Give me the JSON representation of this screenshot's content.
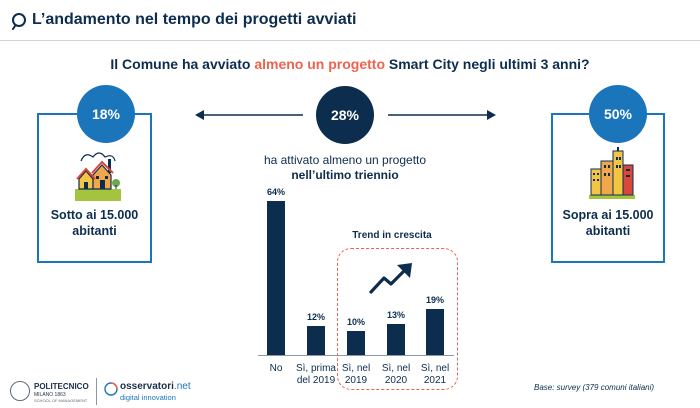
{
  "header": {
    "title": "L’andamento nel tempo dei progetti avviati",
    "icon": "magnifier-icon"
  },
  "question": {
    "before": "Il Comune ha avviato ",
    "highlight": "almeno un progetto",
    "after": " Smart City negli ultimi 3 anni?"
  },
  "left_panel": {
    "percent": "18%",
    "label_line1": "Sotto ai 15.000",
    "label_line2": "abitanti",
    "icon": "village-icon"
  },
  "right_panel": {
    "percent": "50%",
    "label_line1": "Sopra ai 15.000",
    "label_line2": "abitanti",
    "icon": "city-skyline-icon"
  },
  "center": {
    "percent": "28%",
    "text_line1": "ha attivato almeno un progetto",
    "text_line2": "nell’ultimo triennio"
  },
  "trend": {
    "title": "Trend in crescita",
    "icon": "trend-up-arrow-icon"
  },
  "chart_data": {
    "type": "bar",
    "categories": [
      "No",
      "Sì, prima del 2019",
      "Sì, nel 2019",
      "Sì, nel 2020",
      "Sì, nel 2021"
    ],
    "category_lines": [
      [
        "No"
      ],
      [
        "Sì, prima",
        "del 2019"
      ],
      [
        "Sì, nel",
        "2019"
      ],
      [
        "Sì, nel",
        "2020"
      ],
      [
        "Sì, nel",
        "2021"
      ]
    ],
    "values": [
      64,
      12,
      10,
      13,
      19
    ],
    "value_labels": [
      "64%",
      "12%",
      "10%",
      "13%",
      "19%"
    ],
    "ylim": [
      0,
      64
    ],
    "color": "#0d2d4f",
    "xlabel": "",
    "ylabel": ""
  },
  "footer": {
    "poli_name": "POLITECNICO",
    "poli_sub": "MILANO 1863",
    "poli_school": "SCHOOL OF MANAGEMENT",
    "oss_main": "osservatori",
    "oss_ext": ".net",
    "oss_sub": "digital innovation",
    "base_note": "Base: survey (379 comuni italiani)"
  },
  "colors": {
    "navy": "#0d2d4f",
    "blue": "#1b75bb",
    "accent": "#f0624d"
  }
}
